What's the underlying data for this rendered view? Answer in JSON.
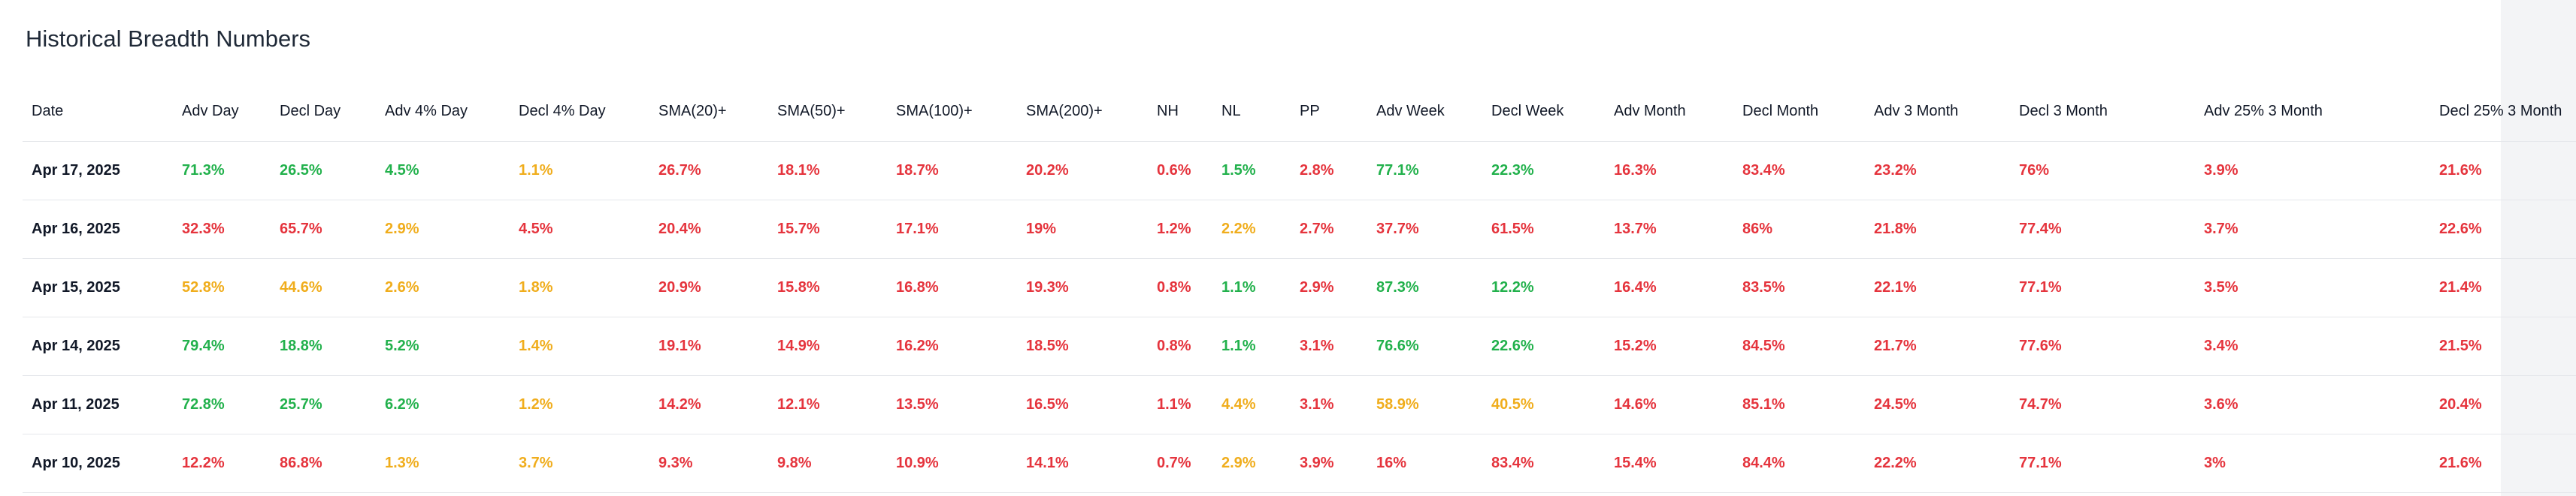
{
  "title": "Historical Breadth Numbers",
  "colors": {
    "green": "#22b14c",
    "red": "#e5343d",
    "amber": "#f0ad1c"
  },
  "columns": [
    "Date",
    "Adv Day",
    "Decl Day",
    "Adv 4% Day",
    "Decl 4% Day",
    "SMA(20)+",
    "SMA(50)+",
    "SMA(100)+",
    "SMA(200)+",
    "NH",
    "NL",
    "PP",
    "Adv Week",
    "Decl Week",
    "Adv Month",
    "Decl Month",
    "Adv 3 Month",
    "Decl 3 Month",
    "Adv 25% 3 Month",
    "Decl 25% 3 Month"
  ],
  "rows": [
    {
      "date": "Apr 17, 2025",
      "cells": [
        {
          "value": "71.3%",
          "color": "green"
        },
        {
          "value": "26.5%",
          "color": "green"
        },
        {
          "value": "4.5%",
          "color": "green"
        },
        {
          "value": "1.1%",
          "color": "amber"
        },
        {
          "value": "26.7%",
          "color": "red"
        },
        {
          "value": "18.1%",
          "color": "red"
        },
        {
          "value": "18.7%",
          "color": "red"
        },
        {
          "value": "20.2%",
          "color": "red"
        },
        {
          "value": "0.6%",
          "color": "red"
        },
        {
          "value": "1.5%",
          "color": "green"
        },
        {
          "value": "2.8%",
          "color": "red"
        },
        {
          "value": "77.1%",
          "color": "green"
        },
        {
          "value": "22.3%",
          "color": "green"
        },
        {
          "value": "16.3%",
          "color": "red"
        },
        {
          "value": "83.4%",
          "color": "red"
        },
        {
          "value": "23.2%",
          "color": "red"
        },
        {
          "value": "76%",
          "color": "red"
        },
        {
          "value": "3.9%",
          "color": "red"
        },
        {
          "value": "21.6%",
          "color": "red"
        }
      ]
    },
    {
      "date": "Apr 16, 2025",
      "cells": [
        {
          "value": "32.3%",
          "color": "red"
        },
        {
          "value": "65.7%",
          "color": "red"
        },
        {
          "value": "2.9%",
          "color": "amber"
        },
        {
          "value": "4.5%",
          "color": "red"
        },
        {
          "value": "20.4%",
          "color": "red"
        },
        {
          "value": "15.7%",
          "color": "red"
        },
        {
          "value": "17.1%",
          "color": "red"
        },
        {
          "value": "19%",
          "color": "red"
        },
        {
          "value": "1.2%",
          "color": "red"
        },
        {
          "value": "2.2%",
          "color": "amber"
        },
        {
          "value": "2.7%",
          "color": "red"
        },
        {
          "value": "37.7%",
          "color": "red"
        },
        {
          "value": "61.5%",
          "color": "red"
        },
        {
          "value": "13.7%",
          "color": "red"
        },
        {
          "value": "86%",
          "color": "red"
        },
        {
          "value": "21.8%",
          "color": "red"
        },
        {
          "value": "77.4%",
          "color": "red"
        },
        {
          "value": "3.7%",
          "color": "red"
        },
        {
          "value": "22.6%",
          "color": "red"
        }
      ]
    },
    {
      "date": "Apr 15, 2025",
      "cells": [
        {
          "value": "52.8%",
          "color": "amber"
        },
        {
          "value": "44.6%",
          "color": "amber"
        },
        {
          "value": "2.6%",
          "color": "amber"
        },
        {
          "value": "1.8%",
          "color": "amber"
        },
        {
          "value": "20.9%",
          "color": "red"
        },
        {
          "value": "15.8%",
          "color": "red"
        },
        {
          "value": "16.8%",
          "color": "red"
        },
        {
          "value": "19.3%",
          "color": "red"
        },
        {
          "value": "0.8%",
          "color": "red"
        },
        {
          "value": "1.1%",
          "color": "green"
        },
        {
          "value": "2.9%",
          "color": "red"
        },
        {
          "value": "87.3%",
          "color": "green"
        },
        {
          "value": "12.2%",
          "color": "green"
        },
        {
          "value": "16.4%",
          "color": "red"
        },
        {
          "value": "83.5%",
          "color": "red"
        },
        {
          "value": "22.1%",
          "color": "red"
        },
        {
          "value": "77.1%",
          "color": "red"
        },
        {
          "value": "3.5%",
          "color": "red"
        },
        {
          "value": "21.4%",
          "color": "red"
        }
      ]
    },
    {
      "date": "Apr 14, 2025",
      "cells": [
        {
          "value": "79.4%",
          "color": "green"
        },
        {
          "value": "18.8%",
          "color": "green"
        },
        {
          "value": "5.2%",
          "color": "green"
        },
        {
          "value": "1.4%",
          "color": "amber"
        },
        {
          "value": "19.1%",
          "color": "red"
        },
        {
          "value": "14.9%",
          "color": "red"
        },
        {
          "value": "16.2%",
          "color": "red"
        },
        {
          "value": "18.5%",
          "color": "red"
        },
        {
          "value": "0.8%",
          "color": "red"
        },
        {
          "value": "1.1%",
          "color": "green"
        },
        {
          "value": "3.1%",
          "color": "red"
        },
        {
          "value": "76.6%",
          "color": "green"
        },
        {
          "value": "22.6%",
          "color": "green"
        },
        {
          "value": "15.2%",
          "color": "red"
        },
        {
          "value": "84.5%",
          "color": "red"
        },
        {
          "value": "21.7%",
          "color": "red"
        },
        {
          "value": "77.6%",
          "color": "red"
        },
        {
          "value": "3.4%",
          "color": "red"
        },
        {
          "value": "21.5%",
          "color": "red"
        }
      ]
    },
    {
      "date": "Apr 11, 2025",
      "cells": [
        {
          "value": "72.8%",
          "color": "green"
        },
        {
          "value": "25.7%",
          "color": "green"
        },
        {
          "value": "6.2%",
          "color": "green"
        },
        {
          "value": "1.2%",
          "color": "amber"
        },
        {
          "value": "14.2%",
          "color": "red"
        },
        {
          "value": "12.1%",
          "color": "red"
        },
        {
          "value": "13.5%",
          "color": "red"
        },
        {
          "value": "16.5%",
          "color": "red"
        },
        {
          "value": "1.1%",
          "color": "red"
        },
        {
          "value": "4.4%",
          "color": "amber"
        },
        {
          "value": "3.1%",
          "color": "red"
        },
        {
          "value": "58.9%",
          "color": "amber"
        },
        {
          "value": "40.5%",
          "color": "amber"
        },
        {
          "value": "14.6%",
          "color": "red"
        },
        {
          "value": "85.1%",
          "color": "red"
        },
        {
          "value": "24.5%",
          "color": "red"
        },
        {
          "value": "74.7%",
          "color": "red"
        },
        {
          "value": "3.6%",
          "color": "red"
        },
        {
          "value": "20.4%",
          "color": "red"
        }
      ]
    },
    {
      "date": "Apr 10, 2025",
      "cells": [
        {
          "value": "12.2%",
          "color": "red"
        },
        {
          "value": "86.8%",
          "color": "red"
        },
        {
          "value": "1.3%",
          "color": "amber"
        },
        {
          "value": "3.7%",
          "color": "amber"
        },
        {
          "value": "9.3%",
          "color": "red"
        },
        {
          "value": "9.8%",
          "color": "red"
        },
        {
          "value": "10.9%",
          "color": "red"
        },
        {
          "value": "14.1%",
          "color": "red"
        },
        {
          "value": "0.7%",
          "color": "red"
        },
        {
          "value": "2.9%",
          "color": "amber"
        },
        {
          "value": "3.9%",
          "color": "red"
        },
        {
          "value": "16%",
          "color": "red"
        },
        {
          "value": "83.4%",
          "color": "red"
        },
        {
          "value": "15.4%",
          "color": "red"
        },
        {
          "value": "84.4%",
          "color": "red"
        },
        {
          "value": "22.2%",
          "color": "red"
        },
        {
          "value": "77.1%",
          "color": "red"
        },
        {
          "value": "3%",
          "color": "red"
        },
        {
          "value": "21.6%",
          "color": "red"
        }
      ]
    }
  ]
}
